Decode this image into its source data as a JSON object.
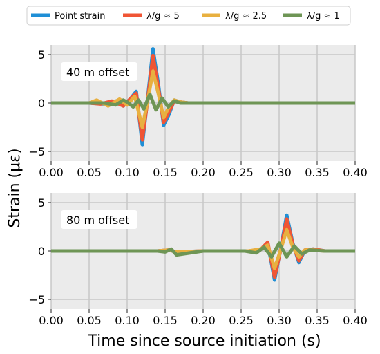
{
  "chart_data": {
    "type": "line",
    "xlabel": "Time since source initiation (s)",
    "ylabel": "Strain (με)",
    "legend": {
      "placement": "top",
      "entries": [
        "Point strain",
        "λ/g ≈ 5",
        "λ/g ≈ 2.5",
        "λ/g ≈ 1"
      ]
    },
    "grid": true,
    "background": "#EBEBEB",
    "colors": {
      "point_strain": "#1F8FD6",
      "lambda_5": "#F05535",
      "lambda_2_5": "#E8B040",
      "lambda_1": "#6E9555"
    },
    "panels": [
      {
        "annotation": "40 m offset",
        "xlim": [
          0.0,
          0.4
        ],
        "ylim": [
          -6,
          6
        ],
        "xticks": [
          "0.00",
          "0.05",
          "0.10",
          "0.15",
          "0.20",
          "0.25",
          "0.30",
          "0.35",
          "0.40"
        ],
        "yticks": [
          {
            "value": 5,
            "label": "5"
          },
          {
            "value": 0,
            "label": "0"
          },
          {
            "value": -5,
            "label": "−5"
          }
        ],
        "series": [
          {
            "name": "Point strain",
            "color": "#1F8FD6",
            "x": [
              0.0,
              0.05,
              0.07,
              0.085,
              0.095,
              0.105,
              0.112,
              0.12,
              0.127,
              0.134,
              0.141,
              0.148,
              0.155,
              0.162,
              0.17,
              0.18,
              0.2,
              0.25,
              0.3,
              0.35,
              0.4
            ],
            "y": [
              0,
              0,
              -0.1,
              0.2,
              -0.3,
              0.5,
              1.2,
              -4.3,
              0.5,
              5.6,
              2.0,
              -2.3,
              -1.2,
              0.3,
              0.1,
              0,
              0,
              0,
              0,
              0,
              0
            ]
          },
          {
            "name": "λ/g ≈ 5",
            "color": "#F05535",
            "x": [
              0.0,
              0.05,
              0.065,
              0.08,
              0.095,
              0.105,
              0.112,
              0.12,
              0.127,
              0.134,
              0.141,
              0.148,
              0.155,
              0.162,
              0.17,
              0.18,
              0.2,
              0.25,
              0.3,
              0.35,
              0.4
            ],
            "y": [
              0,
              0,
              -0.1,
              0.2,
              -0.3,
              0.5,
              1.0,
              -3.8,
              0.3,
              4.9,
              1.6,
              -2.0,
              -0.9,
              0.2,
              0.1,
              0,
              0,
              0,
              0,
              0,
              0
            ]
          },
          {
            "name": "λ/g ≈ 2.5",
            "color": "#E8B040",
            "x": [
              0.0,
              0.05,
              0.06,
              0.075,
              0.09,
              0.1,
              0.11,
              0.12,
              0.127,
              0.134,
              0.141,
              0.148,
              0.155,
              0.162,
              0.17,
              0.18,
              0.2,
              0.25,
              0.3,
              0.35,
              0.4
            ],
            "y": [
              0,
              0,
              0.3,
              -0.3,
              0.4,
              -0.2,
              0.7,
              -2.5,
              0.2,
              3.3,
              1.0,
              -1.5,
              -0.4,
              0.3,
              0.1,
              0,
              0,
              0,
              0,
              0,
              0
            ]
          },
          {
            "name": "λ/g ≈ 1",
            "color": "#6E9555",
            "x": [
              0.0,
              0.05,
              0.07,
              0.085,
              0.095,
              0.1,
              0.108,
              0.115,
              0.122,
              0.13,
              0.138,
              0.146,
              0.154,
              0.162,
              0.17,
              0.18,
              0.2,
              0.25,
              0.3,
              0.35,
              0.4
            ],
            "y": [
              0,
              0,
              0.0,
              -0.2,
              0.3,
              0.1,
              -0.4,
              0.3,
              -0.6,
              0.9,
              -0.7,
              0.5,
              -0.4,
              0.2,
              0.0,
              0,
              0,
              0,
              0,
              0,
              0
            ]
          }
        ]
      },
      {
        "annotation": "80 m offset",
        "xlim": [
          0.0,
          0.4
        ],
        "ylim": [
          -6,
          6
        ],
        "xticks": [
          "0.00",
          "0.05",
          "0.10",
          "0.15",
          "0.20",
          "0.25",
          "0.30",
          "0.35",
          "0.40"
        ],
        "yticks": [
          {
            "value": 5,
            "label": "5"
          },
          {
            "value": 0,
            "label": "0"
          },
          {
            "value": -5,
            "label": "−5"
          }
        ],
        "series": [
          {
            "name": "Point strain",
            "color": "#1F8FD6",
            "x": [
              0.0,
              0.1,
              0.14,
              0.155,
              0.165,
              0.2,
              0.26,
              0.275,
              0.285,
              0.294,
              0.302,
              0.31,
              0.318,
              0.326,
              0.334,
              0.345,
              0.36,
              0.4
            ],
            "y": [
              0,
              0,
              0,
              0.1,
              -0.1,
              0,
              0,
              0.1,
              0.8,
              -3.0,
              0.2,
              3.7,
              0.8,
              -1.2,
              0.1,
              0.2,
              0,
              0
            ]
          },
          {
            "name": "λ/g ≈ 5",
            "color": "#F05535",
            "x": [
              0.0,
              0.1,
              0.14,
              0.155,
              0.165,
              0.2,
              0.26,
              0.275,
              0.285,
              0.294,
              0.302,
              0.31,
              0.318,
              0.326,
              0.334,
              0.345,
              0.36,
              0.4
            ],
            "y": [
              0,
              0,
              0,
              0.1,
              -0.1,
              0,
              0,
              0.1,
              0.9,
              -2.7,
              0.1,
              3.3,
              0.7,
              -1.0,
              0.1,
              0.2,
              0,
              0
            ]
          },
          {
            "name": "λ/g ≈ 2.5",
            "color": "#E8B040",
            "x": [
              0.0,
              0.1,
              0.14,
              0.155,
              0.165,
              0.2,
              0.26,
              0.275,
              0.285,
              0.294,
              0.302,
              0.31,
              0.318,
              0.326,
              0.334,
              0.345,
              0.36,
              0.4
            ],
            "y": [
              0,
              0,
              0,
              0.1,
              -0.1,
              0,
              0,
              0.2,
              0.6,
              -1.8,
              0.1,
              2.2,
              0.4,
              -0.6,
              0.1,
              0.1,
              0,
              0
            ]
          },
          {
            "name": "λ/g ≈ 1",
            "color": "#6E9555",
            "x": [
              0.0,
              0.1,
              0.14,
              0.15,
              0.158,
              0.165,
              0.2,
              0.255,
              0.27,
              0.28,
              0.29,
              0.3,
              0.31,
              0.32,
              0.33,
              0.34,
              0.36,
              0.4
            ],
            "y": [
              0,
              0,
              0,
              -0.1,
              0.2,
              -0.4,
              0,
              0,
              -0.2,
              0.4,
              -0.6,
              0.8,
              -0.6,
              0.5,
              -0.3,
              0.1,
              0,
              0
            ]
          }
        ]
      }
    ]
  }
}
